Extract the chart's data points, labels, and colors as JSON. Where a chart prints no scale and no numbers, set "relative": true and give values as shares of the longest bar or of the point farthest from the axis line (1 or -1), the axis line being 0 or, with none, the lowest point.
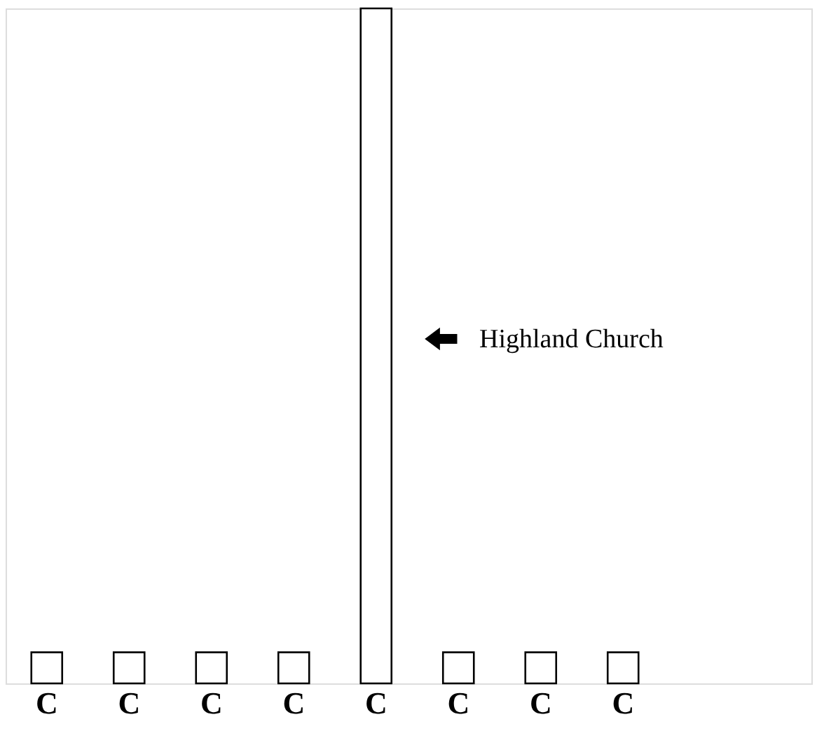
{
  "chart_data": {
    "type": "bar",
    "relative": true,
    "categories": [
      "C",
      "C",
      "C",
      "C",
      "C",
      "C",
      "C",
      "C"
    ],
    "values": [
      0.046,
      0.046,
      0.046,
      0.046,
      1,
      0.046,
      0.046,
      0.046
    ],
    "color": "#ffffff",
    "annotations": [
      "Highland Church"
    ],
    "grid": false
  }
}
